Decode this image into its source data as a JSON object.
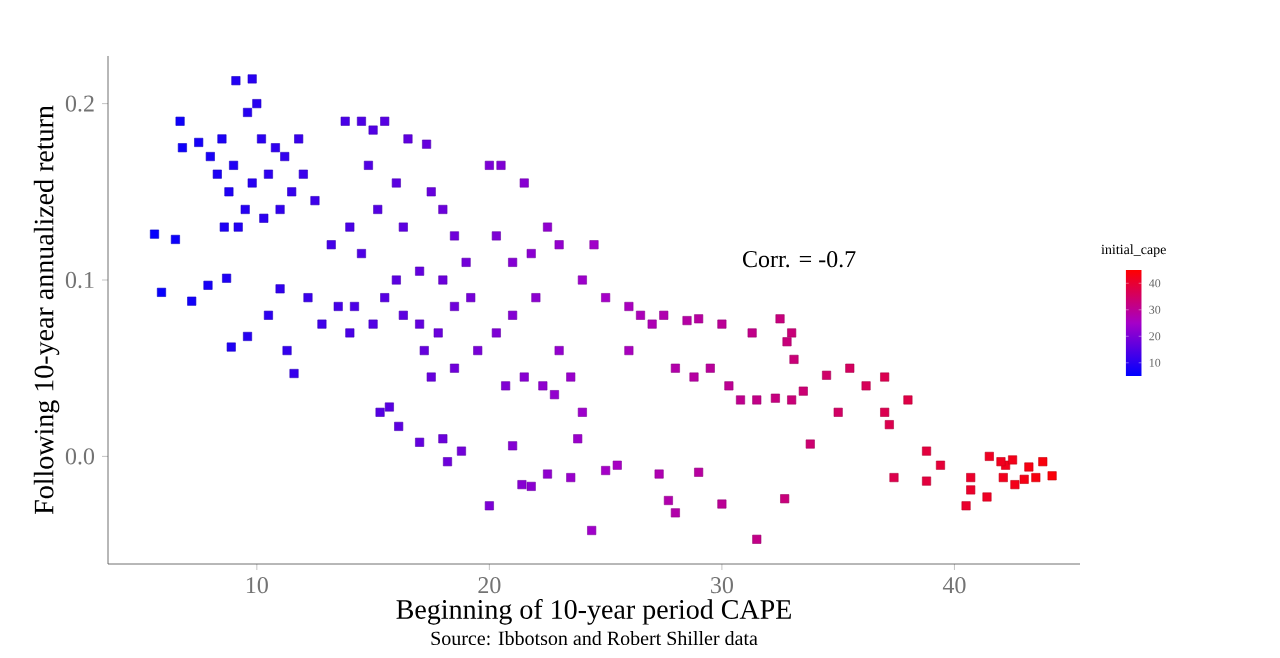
{
  "chart_data": {
    "type": "scatter",
    "xlabel": "Beginning of 10-year period CAPE",
    "ylabel": "Following 10-year annualized return",
    "clabel": "initial_cape",
    "annotations": [
      "Corr. = -0.7",
      "Source: Ibbotson and Robert Shiller data"
    ],
    "marker": "square",
    "grid": false,
    "xlim": [
      3.6,
      45.4
    ],
    "ylim": [
      -0.061,
      0.227
    ],
    "xticks": [
      10,
      20,
      30,
      40
    ],
    "yticks": [
      {
        "value": 0,
        "label": "0.0"
      },
      {
        "value": 0.1,
        "label": "0.1"
      },
      {
        "value": 0.2,
        "label": "0.2"
      }
    ],
    "clim": [
      5,
      45
    ],
    "cticks": [
      10,
      20,
      30,
      40
    ],
    "x": [
      5.6,
      5.9,
      6.5,
      7.2,
      6.7,
      6.8,
      7.5,
      8.0,
      8.3,
      8.5,
      8.8,
      9.0,
      9.1,
      9.8,
      9.6,
      10.0,
      10.2,
      10.5,
      9.5,
      9.8,
      10.8,
      11.2,
      11.5,
      11.0,
      12.0,
      12.5,
      11.8,
      10.3,
      9.2,
      8.6,
      7.9,
      8.7,
      8.9,
      9.6,
      10.5,
      11.0,
      11.3,
      11.6,
      12.2,
      12.8,
      13.5,
      13.2,
      14.0,
      14.5,
      13.8,
      14.5,
      15.0,
      15.5,
      16.5,
      17.3,
      14.8,
      16.0,
      15.2,
      16.3,
      17.5,
      18.0,
      18.5,
      19.0,
      17.0,
      16.0,
      15.5,
      14.2,
      14.0,
      15.0,
      16.3,
      17.0,
      17.8,
      18.5,
      19.2,
      18.0,
      17.2,
      17.5,
      18.5,
      19.5,
      20.0,
      20.5,
      21.5,
      20.3,
      21.0,
      21.8,
      22.5,
      23.0,
      22.0,
      21.0,
      20.3,
      20.7,
      21.5,
      22.3,
      22.8,
      23.5,
      23.0,
      24.0,
      24.5,
      25.0,
      26.0,
      26.5,
      27.0,
      27.5,
      26.0,
      24.0,
      23.8,
      15.3,
      15.7,
      16.1,
      17.0,
      18.0,
      18.2,
      18.8,
      20.0,
      21.0,
      21.4,
      21.8,
      22.5,
      23.5,
      24.4,
      25.0,
      25.5,
      27.3,
      27.7,
      28.0,
      29.0,
      30.0,
      31.5,
      32.7,
      33.8,
      28.0,
      28.8,
      29.5,
      30.3,
      30.8,
      31.5,
      32.3,
      33.0,
      33.5,
      34.5,
      35.5,
      36.2,
      37.0,
      37.0,
      38.0,
      35.0,
      32.5,
      32.8,
      33.0,
      33.1,
      28.5,
      29.0,
      30.0,
      31.3,
      37.2,
      38.8,
      39.4,
      37.4,
      38.8,
      40.5,
      40.7,
      41.4,
      42.1,
      42.6,
      43.0,
      43.5,
      44.2,
      41.5,
      42.2,
      42.5,
      43.2,
      43.8,
      40.7,
      42.0
    ],
    "values": [
      0.126,
      0.093,
      0.123,
      0.088,
      0.19,
      0.175,
      0.178,
      0.17,
      0.16,
      0.18,
      0.15,
      0.165,
      0.213,
      0.214,
      0.195,
      0.2,
      0.18,
      0.16,
      0.14,
      0.155,
      0.175,
      0.17,
      0.15,
      0.14,
      0.16,
      0.145,
      0.18,
      0.135,
      0.13,
      0.13,
      0.097,
      0.101,
      0.062,
      0.068,
      0.08,
      0.095,
      0.06,
      0.047,
      0.09,
      0.075,
      0.085,
      0.12,
      0.13,
      0.115,
      0.19,
      0.19,
      0.185,
      0.19,
      0.18,
      0.177,
      0.165,
      0.155,
      0.14,
      0.13,
      0.15,
      0.14,
      0.125,
      0.11,
      0.105,
      0.1,
      0.09,
      0.085,
      0.07,
      0.075,
      0.08,
      0.075,
      0.07,
      0.085,
      0.09,
      0.1,
      0.06,
      0.045,
      0.05,
      0.06,
      0.165,
      0.165,
      0.155,
      0.125,
      0.11,
      0.115,
      0.13,
      0.12,
      0.09,
      0.08,
      0.07,
      0.04,
      0.045,
      0.04,
      0.035,
      0.045,
      0.06,
      0.1,
      0.12,
      0.09,
      0.085,
      0.08,
      0.075,
      0.08,
      0.06,
      0.025,
      0.01,
      0.025,
      0.028,
      0.017,
      0.008,
      0.01,
      -0.003,
      0.003,
      -0.028,
      0.006,
      -0.016,
      -0.017,
      -0.01,
      -0.012,
      -0.042,
      -0.008,
      -0.005,
      -0.01,
      -0.025,
      -0.032,
      -0.009,
      -0.027,
      -0.047,
      -0.024,
      0.007,
      0.05,
      0.045,
      0.05,
      0.04,
      0.032,
      0.032,
      0.033,
      0.032,
      0.037,
      0.046,
      0.05,
      0.04,
      0.045,
      0.025,
      0.032,
      0.025,
      0.078,
      0.065,
      0.07,
      0.055,
      0.077,
      0.078,
      0.075,
      0.07,
      0.018,
      0.003,
      -0.005,
      -0.012,
      -0.014,
      -0.028,
      -0.019,
      -0.023,
      -0.012,
      -0.016,
      -0.013,
      -0.012,
      -0.011,
      0.0,
      -0.005,
      -0.002,
      -0.006,
      -0.003,
      -0.012,
      -0.003
    ],
    "cvalues": [
      5.6,
      5.9,
      6.5,
      7.2,
      6.7,
      6.8,
      7.5,
      8.0,
      8.3,
      8.5,
      8.8,
      9.0,
      9.1,
      9.8,
      9.6,
      10.0,
      10.2,
      10.5,
      9.5,
      9.8,
      10.8,
      11.2,
      11.5,
      11.0,
      12.0,
      12.5,
      11.8,
      10.3,
      9.2,
      8.6,
      7.9,
      8.7,
      8.9,
      9.6,
      10.5,
      11.0,
      11.3,
      11.6,
      12.2,
      12.8,
      13.5,
      13.2,
      14.0,
      14.5,
      13.8,
      14.5,
      15.0,
      15.5,
      16.5,
      17.3,
      14.8,
      16.0,
      15.2,
      16.3,
      17.5,
      18.0,
      18.5,
      19.0,
      17.0,
      16.0,
      15.5,
      14.2,
      14.0,
      15.0,
      16.3,
      17.0,
      17.8,
      18.5,
      19.2,
      18.0,
      17.2,
      17.5,
      18.5,
      19.5,
      20.0,
      20.5,
      21.5,
      20.3,
      21.0,
      21.8,
      22.5,
      23.0,
      22.0,
      21.0,
      20.3,
      20.7,
      21.5,
      22.3,
      22.8,
      23.5,
      23.0,
      24.0,
      24.5,
      25.0,
      26.0,
      26.5,
      27.0,
      27.5,
      26.0,
      24.0,
      23.8,
      15.3,
      15.7,
      16.1,
      17.0,
      18.0,
      18.2,
      18.8,
      20.0,
      21.0,
      21.4,
      21.8,
      22.5,
      23.5,
      24.4,
      25.0,
      25.5,
      27.3,
      27.7,
      28.0,
      29.0,
      30.0,
      31.5,
      32.7,
      33.8,
      28.0,
      28.8,
      29.5,
      30.3,
      30.8,
      31.5,
      32.3,
      33.0,
      33.5,
      34.5,
      35.5,
      36.2,
      37.0,
      37.0,
      38.0,
      35.0,
      32.5,
      32.8,
      33.0,
      33.1,
      28.5,
      29.0,
      30.0,
      31.3,
      37.2,
      38.8,
      39.4,
      37.4,
      38.8,
      40.5,
      40.7,
      41.4,
      42.1,
      42.6,
      43.0,
      43.5,
      44.2,
      41.5,
      42.2,
      42.5,
      43.2,
      43.8,
      40.7,
      42.0
    ]
  }
}
